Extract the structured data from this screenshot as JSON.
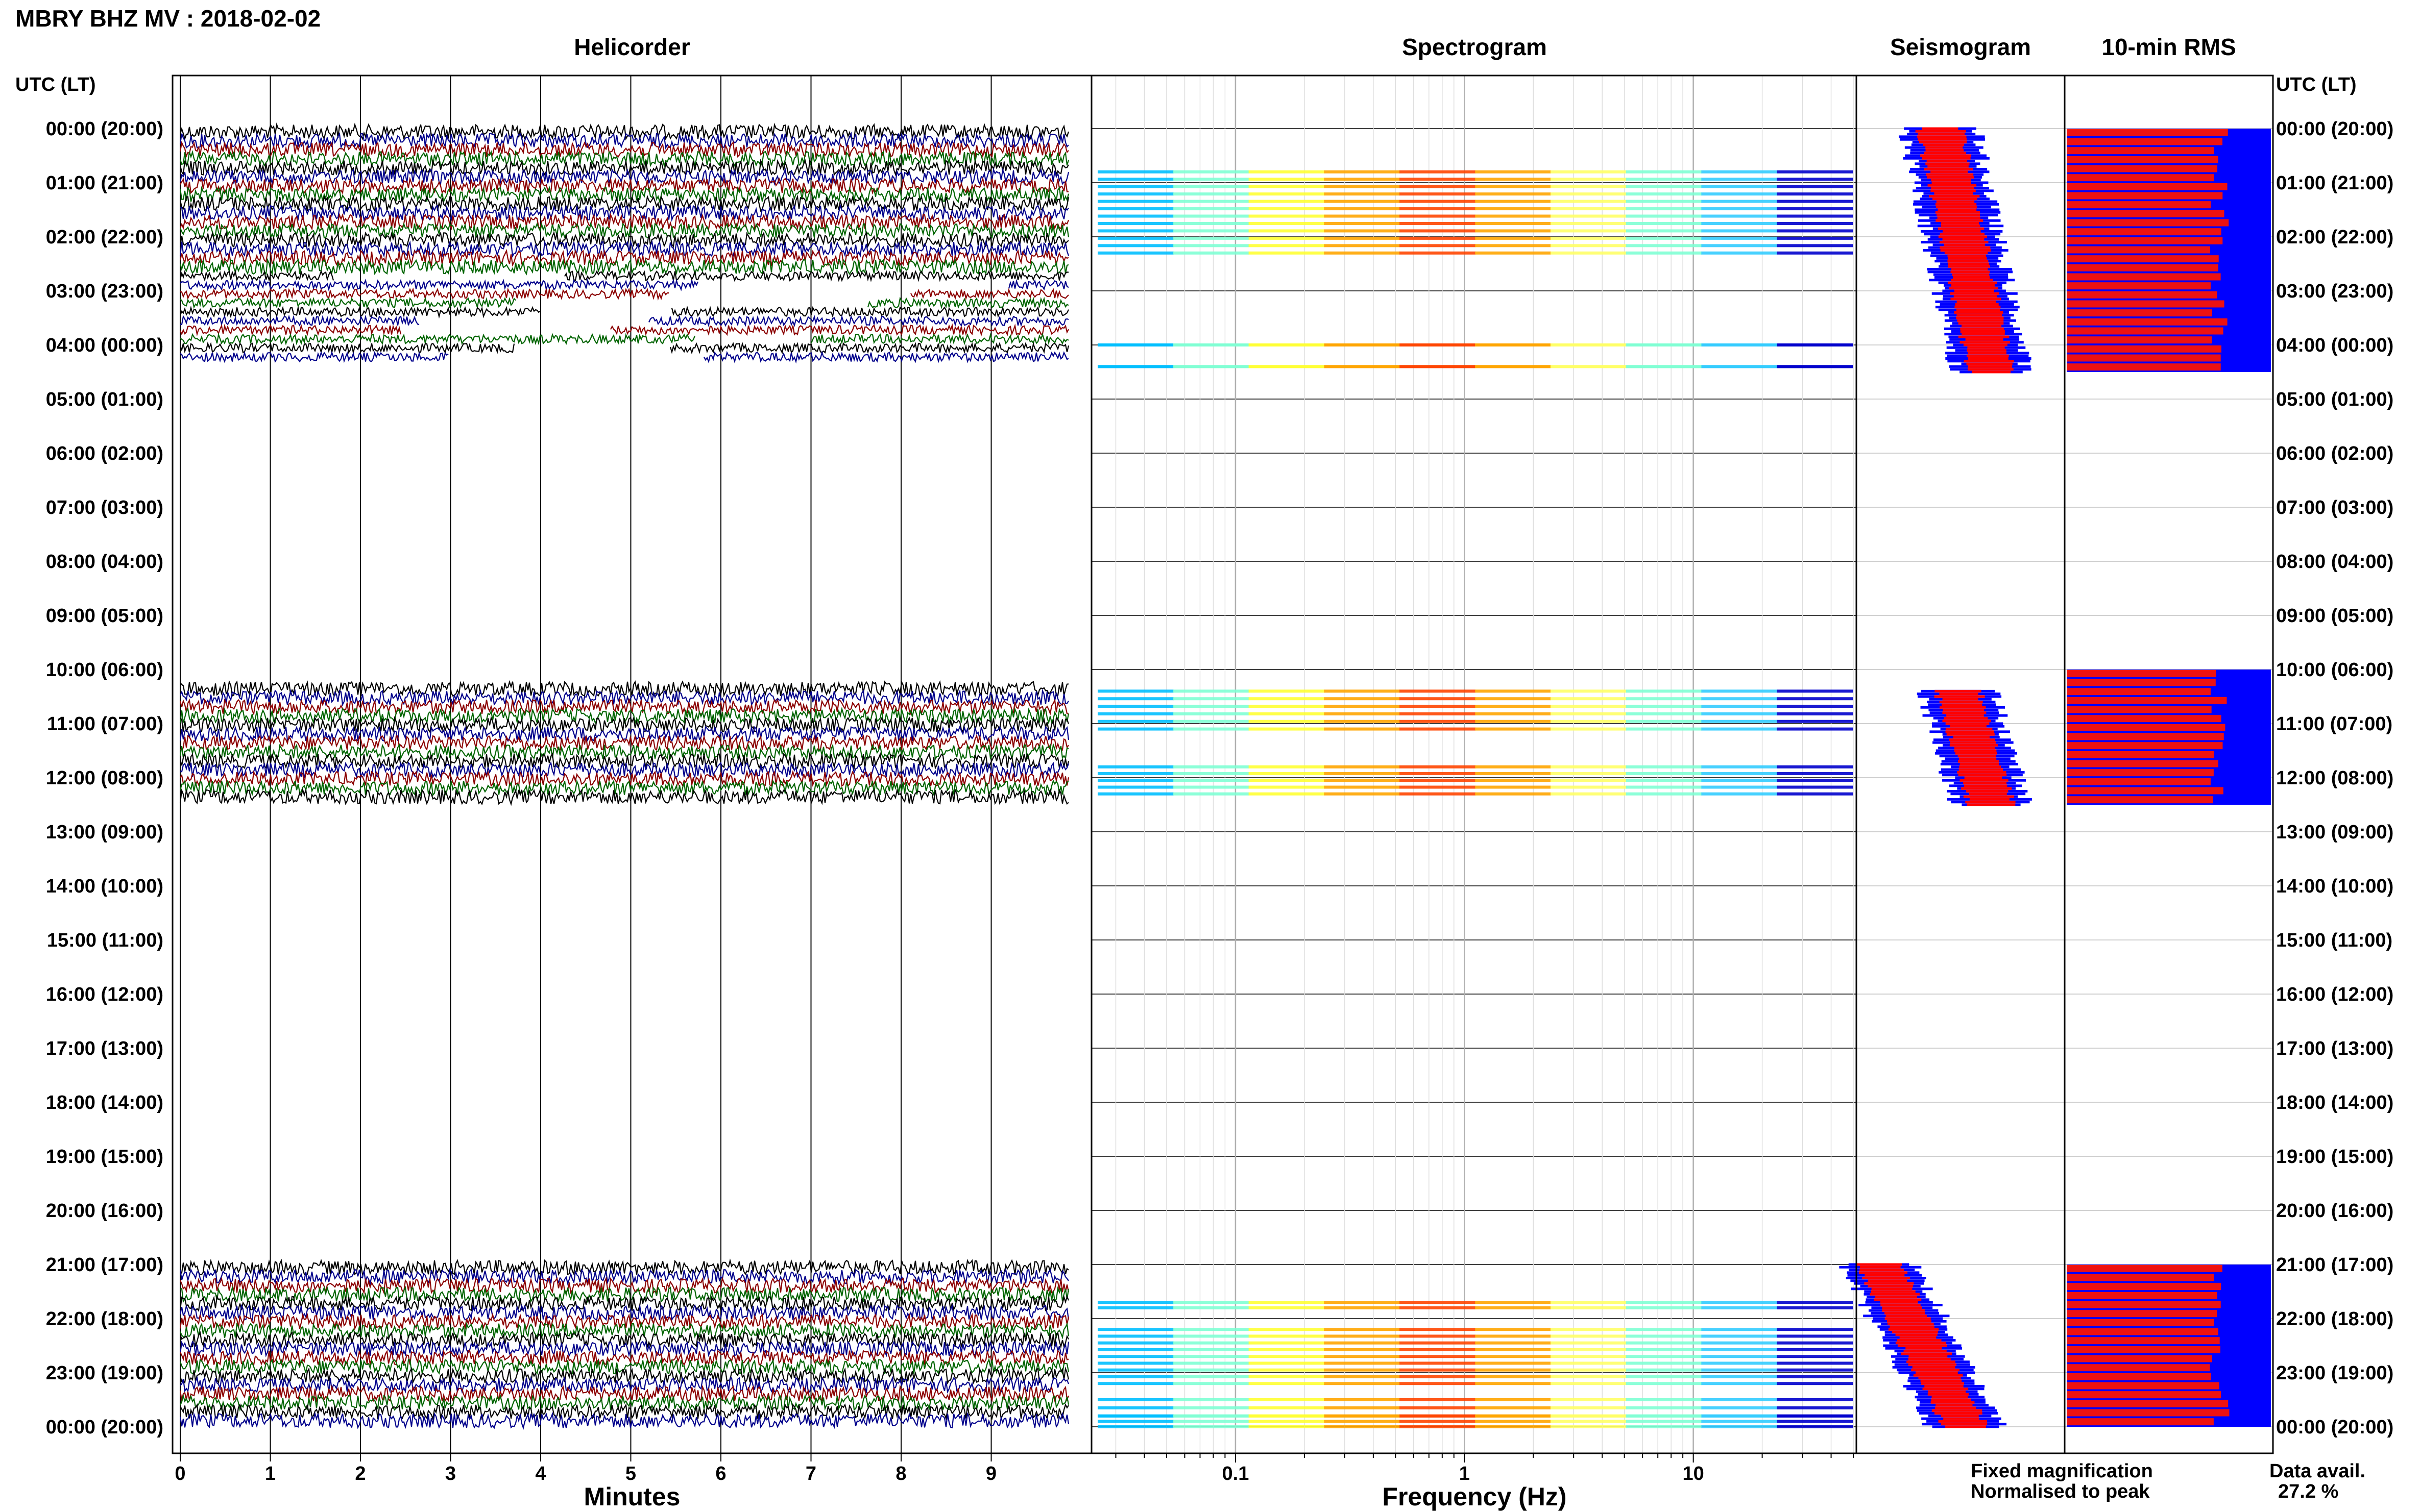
{
  "title": "MBRY BHZ MV : 2018-02-02",
  "left_axis_header": "UTC (LT)",
  "right_axis_header": "UTC (LT)",
  "panels": {
    "helicorder": "Helicorder",
    "spectrogram": "Spectrogram",
    "seismogram": "Seismogram",
    "rms": "10-min RMS"
  },
  "legend": {
    "fixed": "Fixed magnification",
    "normalised": "Normalised to peak",
    "fixed_color": "#0000ee",
    "normalised_color": "#ee0000"
  },
  "data_avail": {
    "label": "Data avail.",
    "value": "27.2 %"
  },
  "colors": {
    "trace_cycle": [
      "#000000",
      "#00008b",
      "#8b0000",
      "#006400"
    ],
    "rms_fixed": "#0000ff",
    "rms_normalised": "#ee1111",
    "seismo_fixed": "#0000ff",
    "seismo_normalised": "#ff0000"
  },
  "chart_data": [
    {
      "type": "line",
      "panel": "helicorder",
      "xlabel": "Minutes",
      "x_ticks": [
        0,
        1,
        2,
        3,
        4,
        5,
        6,
        7,
        8,
        9
      ],
      "xlim": [
        0,
        10
      ],
      "y_ticks": [
        "00:00 (20:00)",
        "01:00 (21:00)",
        "02:00 (22:00)",
        "03:00 (23:00)",
        "04:00 (00:00)",
        "05:00 (01:00)",
        "06:00 (02:00)",
        "07:00 (03:00)",
        "08:00 (04:00)",
        "09:00 (05:00)",
        "10:00 (06:00)",
        "11:00 (07:00)",
        "12:00 (08:00)",
        "13:00 (09:00)",
        "14:00 (10:00)",
        "15:00 (11:00)",
        "16:00 (12:00)",
        "17:00 (13:00)",
        "18:00 (14:00)",
        "19:00 (15:00)",
        "20:00 (16:00)",
        "21:00 (17:00)",
        "22:00 (18:00)",
        "23:00 (19:00)",
        "00:00 (20:00)"
      ],
      "rows_per_hour": 6,
      "data_segments_utc_hours": [
        [
          0,
          4.3
        ],
        [
          10.3,
          12.5
        ],
        [
          21,
          24
        ]
      ],
      "grid": true
    },
    {
      "type": "heatmap",
      "panel": "spectrogram",
      "xlabel": "Frequency (Hz)",
      "x_scale": "log",
      "xlim": [
        0.025,
        50
      ],
      "x_ticks": [
        0.1,
        1,
        10
      ],
      "x_tick_labels": [
        "0.1",
        "1",
        "10"
      ],
      "band_rows_utc_hours": [
        [
          0.8,
          2.3
        ],
        [
          4.0,
          4.0
        ],
        [
          4.4,
          4.4
        ],
        [
          10.4,
          11.1
        ],
        [
          11.8,
          12.3
        ],
        [
          21.7,
          21.8
        ],
        [
          22.2,
          23.2
        ],
        [
          23.5,
          23.8
        ],
        [
          23.8,
          24.0
        ]
      ],
      "grid": true
    },
    {
      "type": "line",
      "panel": "seismogram",
      "series": [
        {
          "name": "Fixed magnification",
          "color": "#0000ff"
        },
        {
          "name": "Normalised to peak",
          "color": "#ff0000"
        }
      ],
      "grid": true
    },
    {
      "type": "bar",
      "panel": "rms",
      "orientation": "horizontal",
      "interval_minutes": 10,
      "series": [
        {
          "name": "Fixed magnification",
          "color": "#0000ff"
        },
        {
          "name": "Normalised to peak",
          "color": "#ee1111"
        }
      ],
      "segments_utc_hours": [
        [
          0,
          4.5
        ],
        [
          10.0,
          12.5
        ],
        [
          21,
          24
        ]
      ],
      "grid": true
    }
  ]
}
